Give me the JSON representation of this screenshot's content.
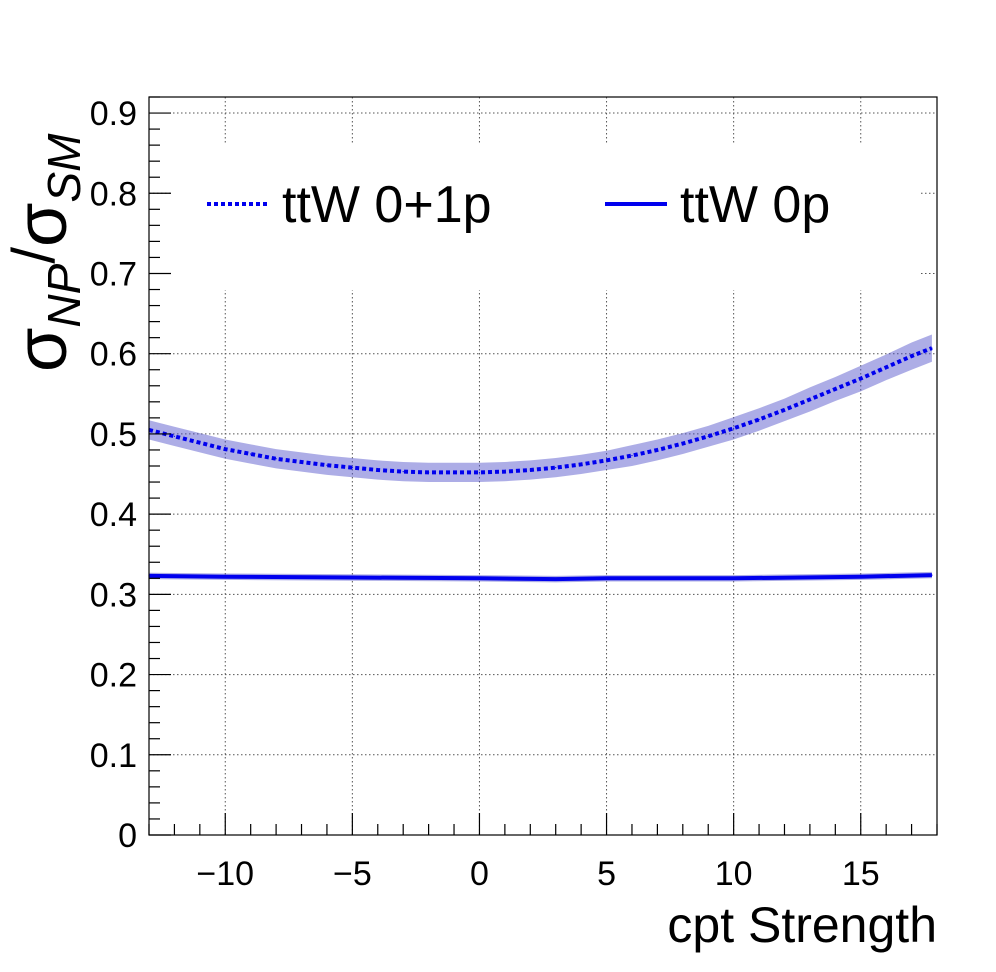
{
  "chart_data": {
    "type": "line",
    "xlabel": "cpt Strength",
    "ylabel": {
      "sym1": "σ",
      "sub1": "NP",
      "slash": "/",
      "sym2": "σ",
      "sub2": "SM"
    },
    "xlim": [
      -13,
      18
    ],
    "ylim": [
      0,
      0.92
    ],
    "x_ticks": [
      -10,
      -5,
      0,
      5,
      10,
      15
    ],
    "x_tick_labels": [
      "−10",
      "−5",
      "0",
      "5",
      "10",
      "15"
    ],
    "y_ticks": [
      0,
      0.1,
      0.2,
      0.3,
      0.4,
      0.5,
      0.6,
      0.7,
      0.8,
      0.9
    ],
    "y_tick_labels": [
      "0",
      "0.1",
      "0.2",
      "0.3",
      "0.4",
      "0.5",
      "0.6",
      "0.7",
      "0.8",
      "0.9"
    ],
    "grid": true,
    "legend_position": "top",
    "series": [
      {
        "name": "ttW 0+1p",
        "style": "dotted",
        "color": "#0000ee",
        "band_color": "#4a4ac8",
        "x": [
          -13,
          -12,
          -11,
          -10,
          -9,
          -8,
          -7,
          -6,
          -5,
          -4,
          -3,
          -2,
          -1,
          0,
          1,
          2,
          3,
          4,
          5,
          6,
          7,
          8,
          9,
          10,
          11,
          12,
          13,
          14,
          15,
          16,
          17,
          17.8
        ],
        "y": [
          0.505,
          0.497,
          0.489,
          0.481,
          0.475,
          0.469,
          0.465,
          0.461,
          0.458,
          0.455,
          0.453,
          0.452,
          0.452,
          0.452,
          0.453,
          0.455,
          0.458,
          0.462,
          0.467,
          0.473,
          0.48,
          0.488,
          0.497,
          0.507,
          0.518,
          0.53,
          0.543,
          0.556,
          0.569,
          0.583,
          0.597,
          0.607
        ],
        "band_halfwidth": [
          0.012,
          0.012,
          0.012,
          0.012,
          0.012,
          0.012,
          0.012,
          0.012,
          0.012,
          0.012,
          0.012,
          0.012,
          0.012,
          0.012,
          0.012,
          0.012,
          0.012,
          0.012,
          0.012,
          0.013,
          0.013,
          0.013,
          0.013,
          0.014,
          0.014,
          0.014,
          0.015,
          0.015,
          0.016,
          0.016,
          0.017,
          0.017
        ]
      },
      {
        "name": "ttW 0p",
        "style": "solid",
        "color": "#0000ee",
        "band_color": "#4a4ac8",
        "x": [
          -13,
          -10,
          -5,
          0,
          3,
          5,
          10,
          15,
          17.8
        ],
        "y": [
          0.323,
          0.322,
          0.321,
          0.32,
          0.319,
          0.32,
          0.32,
          0.322,
          0.324
        ],
        "band_halfwidth": [
          0.004,
          0.004,
          0.004,
          0.004,
          0.004,
          0.004,
          0.004,
          0.004,
          0.004
        ]
      }
    ]
  }
}
